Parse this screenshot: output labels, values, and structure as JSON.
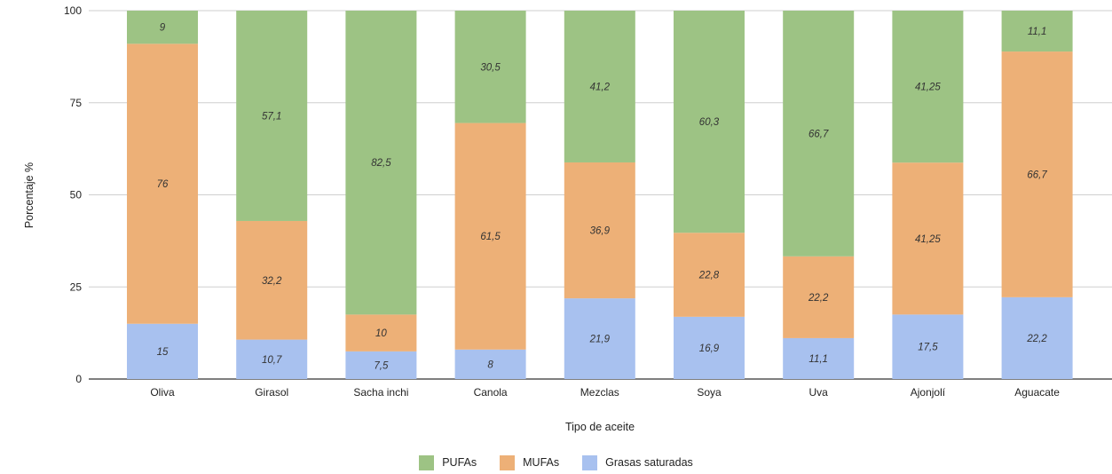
{
  "chart_data": {
    "type": "bar",
    "stacked": true,
    "ylabel": "Porcentaje %",
    "xlabel": "Tipo de aceite",
    "ylim": [
      0,
      100
    ],
    "yticks": [
      0,
      25,
      50,
      75,
      100
    ],
    "grid": true,
    "legend_position": "bottom",
    "categories": [
      "Oliva",
      "Girasol",
      "Sacha inchi",
      "Canola",
      "Mezclas",
      "Soya",
      "Uva",
      "Ajonjolí",
      "Aguacate"
    ],
    "series": [
      {
        "name": "Grasas saturadas",
        "color": "#a8c1ef",
        "values": [
          15,
          10.7,
          7.5,
          8,
          21.9,
          16.9,
          11.1,
          17.5,
          22.2
        ],
        "labels": [
          "15",
          "10,7",
          "7,5",
          "8",
          "21,9",
          "16,9",
          "11,1",
          "17,5",
          "22,2"
        ]
      },
      {
        "name": "MUFAs",
        "color": "#edb077",
        "values": [
          76,
          32.2,
          10,
          61.5,
          36.9,
          22.8,
          22.2,
          41.25,
          66.7
        ],
        "labels": [
          "76",
          "32,2",
          "10",
          "61,5",
          "36,9",
          "22,8",
          "22,2",
          "41,25",
          "66,7"
        ]
      },
      {
        "name": "PUFAs",
        "color": "#9dc384",
        "values": [
          9,
          57.1,
          82.5,
          30.5,
          41.2,
          60.3,
          66.7,
          41.25,
          11.1
        ],
        "labels": [
          "9",
          "57,1",
          "82,5",
          "30,5",
          "41,2",
          "60,3",
          "66,7",
          "41,25",
          "11,1"
        ]
      }
    ],
    "legend_order": [
      "PUFAs",
      "MUFAs",
      "Grasas saturadas"
    ]
  }
}
